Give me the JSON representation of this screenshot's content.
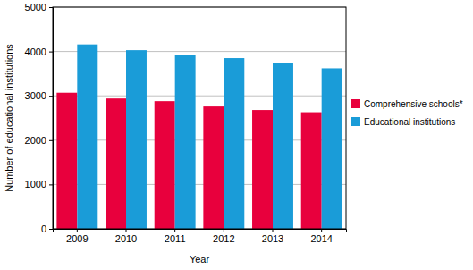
{
  "chart_data": {
    "type": "bar",
    "x_label": "Year",
    "y_label": "Number of educational institutions",
    "categories": [
      "2009",
      "2010",
      "2011",
      "2012",
      "2013",
      "2014"
    ],
    "series": [
      {
        "name": "Comprehensive schools*",
        "color": "#e8003d",
        "values": [
          3070,
          2940,
          2880,
          2760,
          2680,
          2630
        ]
      },
      {
        "name": "Educational institutions",
        "color": "#1a9cd8",
        "values": [
          4160,
          4030,
          3930,
          3850,
          3750,
          3620
        ]
      }
    ],
    "ylim": [
      0,
      5000
    ],
    "yticks": [
      0,
      1000,
      2000,
      3000,
      4000,
      5000
    ],
    "grid": true,
    "legend": "right"
  }
}
